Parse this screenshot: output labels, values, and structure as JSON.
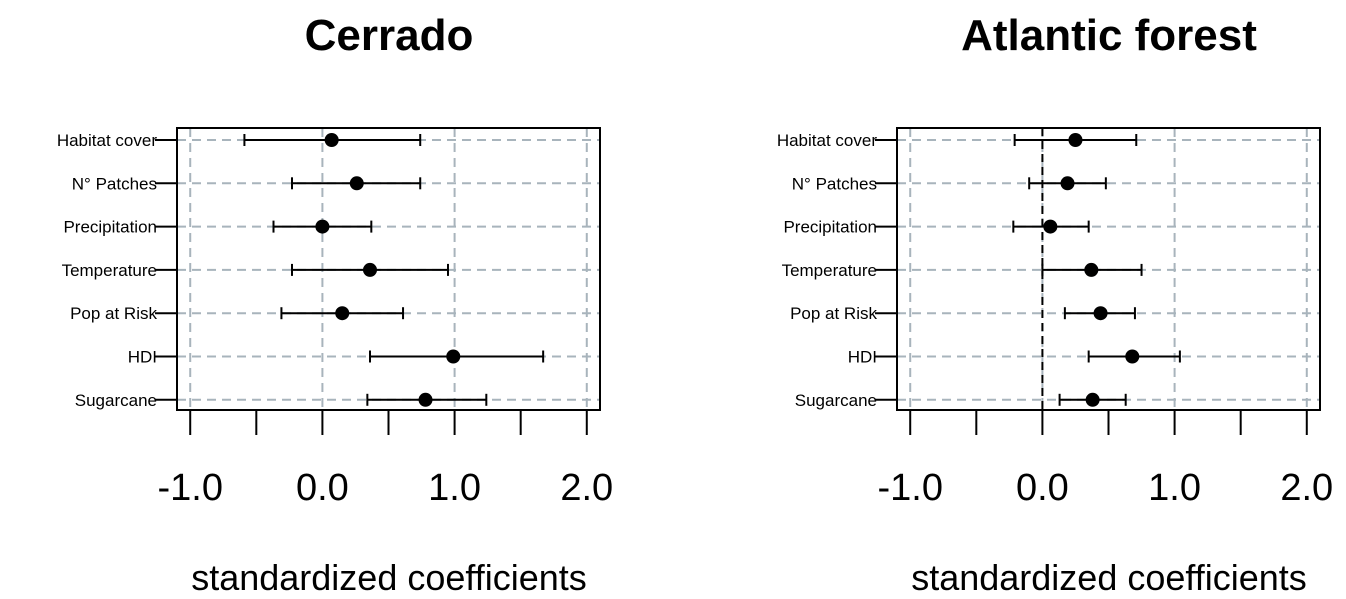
{
  "chart_data": [
    {
      "type": "forest",
      "title": "Cerrado",
      "xlabel": "standardized coefficients",
      "ylabel": "",
      "xlim": [
        -1.1,
        2.1
      ],
      "xticks": [
        -1.0,
        -0.5,
        0.0,
        0.5,
        1.0,
        1.5,
        2.0
      ],
      "xtick_labels": [
        "-1.0",
        "",
        "0.0",
        "",
        "1.0",
        "",
        "2.0"
      ],
      "grid_x": [
        -1.0,
        0.0,
        1.0,
        2.0
      ],
      "zero_line": false,
      "grid": true,
      "categories": [
        "Habitat cover",
        "N° Patches",
        "Precipitation",
        "Temperature",
        "Pop at Risk",
        "HDI",
        "Sugarcane"
      ],
      "estimates": [
        0.07,
        0.26,
        0.0,
        0.36,
        0.15,
        0.99,
        0.78
      ],
      "lower": [
        -0.59,
        -0.23,
        -0.37,
        -0.23,
        -0.31,
        0.36,
        0.34
      ],
      "upper": [
        0.74,
        0.74,
        0.37,
        0.95,
        0.61,
        1.67,
        1.24
      ]
    },
    {
      "type": "forest",
      "title": "Atlantic forest",
      "xlabel": "standardized coefficients",
      "ylabel": "",
      "xlim": [
        -1.1,
        2.1
      ],
      "xticks": [
        -1.0,
        -0.5,
        0.0,
        0.5,
        1.0,
        1.5,
        2.0
      ],
      "xtick_labels": [
        "-1.0",
        "",
        "0.0",
        "",
        "1.0",
        "",
        "2.0"
      ],
      "grid_x": [
        -1.0,
        0.0,
        1.0,
        2.0
      ],
      "zero_line": true,
      "grid": true,
      "categories": [
        "Habitat cover",
        "N° Patches",
        "Precipitation",
        "Temperature",
        "Pop at Risk",
        "HDI",
        "Sugarcane"
      ],
      "estimates": [
        0.25,
        0.19,
        0.06,
        0.37,
        0.44,
        0.68,
        0.38
      ],
      "lower": [
        -0.21,
        -0.1,
        -0.22,
        0.0,
        0.17,
        0.35,
        0.13
      ],
      "upper": [
        0.71,
        0.48,
        0.35,
        0.75,
        0.7,
        1.04,
        0.63
      ]
    }
  ]
}
